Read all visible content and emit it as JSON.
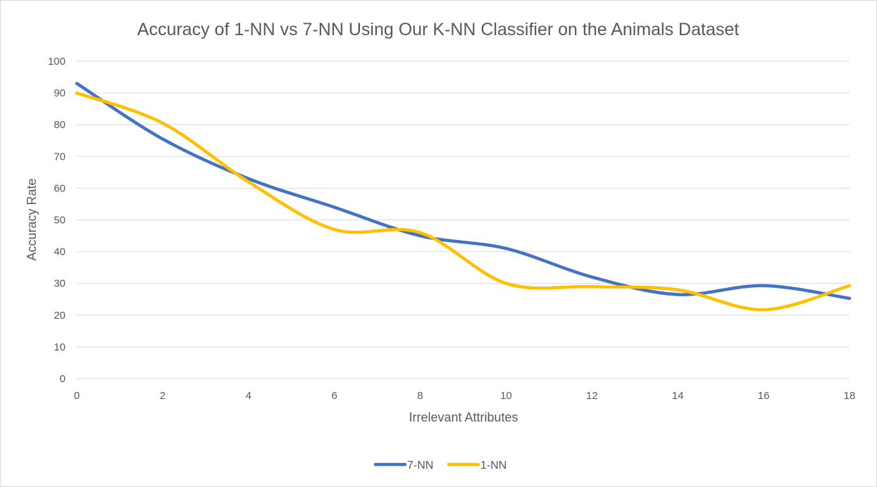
{
  "chart_data": {
    "type": "line",
    "title": "Accuracy of 1-NN vs 7-NN Using Our K-NN Classifier on the Animals Dataset",
    "xlabel": "Irrelevant Attributes",
    "ylabel": "Accuracy Rate",
    "x": [
      0,
      2,
      4,
      6,
      8,
      10,
      12,
      14,
      16,
      18
    ],
    "xlim": [
      0,
      18
    ],
    "ylim": [
      0,
      100
    ],
    "xticks": [
      0,
      2,
      4,
      6,
      8,
      10,
      12,
      14,
      16,
      18
    ],
    "yticks": [
      0,
      10,
      20,
      30,
      40,
      50,
      60,
      70,
      80,
      90,
      100
    ],
    "grid": "horizontal",
    "smooth": true,
    "legend_position": "bottom",
    "series": [
      {
        "name": "7-NN",
        "color": "#4472C4",
        "values": [
          93,
          75.5,
          63,
          54,
          45,
          41,
          32,
          26.5,
          29.3,
          25.3
        ]
      },
      {
        "name": "1-NN",
        "color": "#FFC000",
        "values": [
          90,
          80.5,
          62,
          47,
          46,
          30,
          29,
          28,
          21.7,
          29.3
        ]
      }
    ]
  }
}
